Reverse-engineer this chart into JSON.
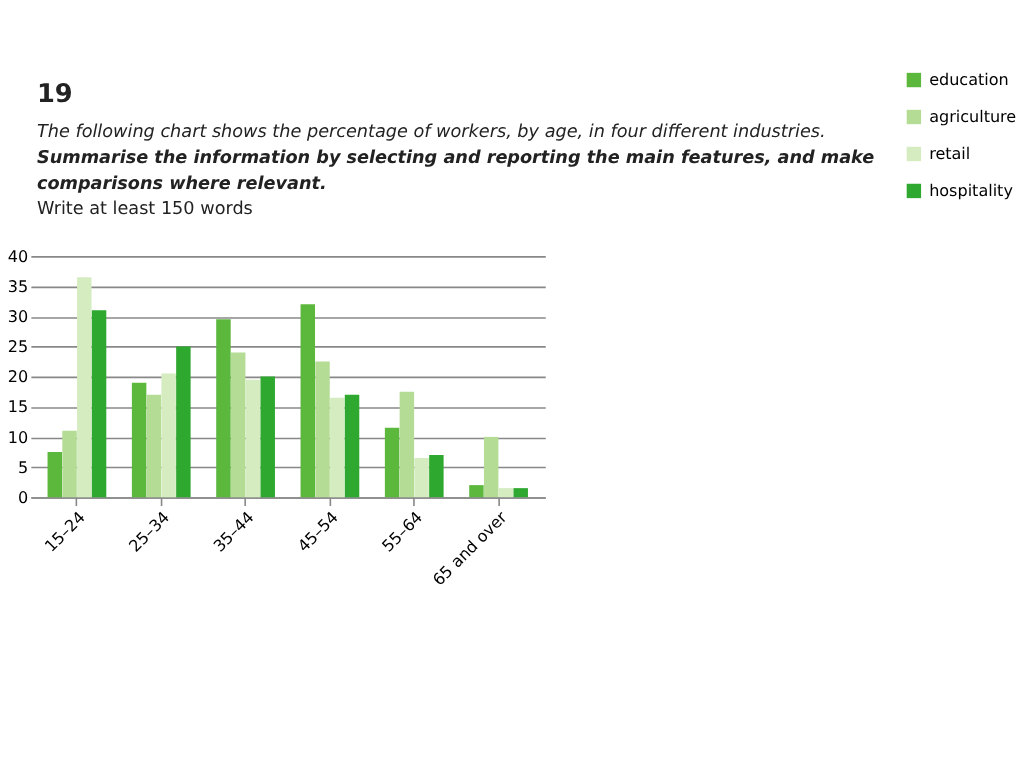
{
  "chart_data": {
    "type": "bar",
    "title": "19",
    "subtitle": "The following chart shows the percentage of workers, by age, in four different industries.",
    "annotations": [
      "Summarise the information by selecting and reporting the main features, and make comparisons where relevant.",
      "Write at least 150 words"
    ],
    "categories": [
      "15–24",
      "25–34",
      "35–44",
      "45–54",
      "55–64",
      "65 and over"
    ],
    "series": [
      {
        "name": "education",
        "color": "#5cb83c",
        "values": [
          7.5,
          19,
          29.5,
          32,
          11.5,
          2
        ]
      },
      {
        "name": "agriculture",
        "color": "#b5dc95",
        "values": [
          11,
          17,
          24,
          22.5,
          17.5,
          10
        ]
      },
      {
        "name": "retail",
        "color": "#d5ecc0",
        "values": [
          36.5,
          20.5,
          19.5,
          16.5,
          6.5,
          1.5
        ]
      },
      {
        "name": "hospitality",
        "color": "#2ea82e",
        "values": [
          31,
          25,
          20,
          17,
          7,
          1.5
        ]
      }
    ],
    "ylim": [
      0,
      40
    ],
    "yticks": [
      0,
      5,
      10,
      15,
      20,
      25,
      30,
      35,
      40
    ],
    "grid": "y",
    "legend": "right"
  }
}
